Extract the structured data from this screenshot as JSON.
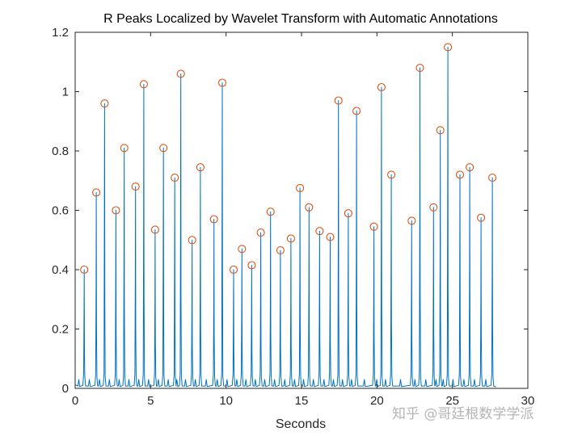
{
  "chart_data": {
    "type": "line",
    "title": "R Peaks Localized by Wavelet Transform with Automatic Annotations",
    "xlabel": "Seconds",
    "ylabel": "",
    "xlim": [
      0,
      30
    ],
    "ylim": [
      0,
      1.2
    ],
    "xticks": [
      0,
      5,
      10,
      15,
      20,
      25,
      30
    ],
    "yticks": [
      0,
      0.2,
      0.4,
      0.6,
      0.8,
      1,
      1.2
    ],
    "xtick_labels": [
      "0",
      "5",
      "10",
      "15",
      "20",
      "25",
      "30"
    ],
    "ytick_labels": [
      "0",
      "0.2",
      "0.4",
      "0.6",
      "0.8",
      "1",
      "1.2"
    ],
    "grid": false,
    "series": [
      {
        "type": "line",
        "color": "#0072BD",
        "description": "wavelet-transformed ECG signal"
      },
      {
        "type": "scatter",
        "marker": "circle-open",
        "color": "#D95319",
        "description": "automatic R peak annotations"
      }
    ],
    "peaks": {
      "x": [
        0.6,
        1.4,
        1.95,
        2.7,
        3.25,
        4.0,
        4.55,
        5.3,
        5.85,
        6.6,
        7.0,
        7.75,
        8.3,
        9.2,
        9.75,
        10.5,
        11.05,
        11.7,
        12.3,
        12.95,
        13.6,
        14.3,
        14.9,
        15.5,
        16.2,
        16.9,
        17.45,
        18.1,
        18.65,
        19.8,
        20.3,
        20.95,
        22.3,
        22.85,
        23.75,
        24.2,
        24.7,
        25.5,
        26.15,
        26.9,
        27.65
      ],
      "y": [
        0.4,
        0.66,
        0.96,
        0.6,
        0.81,
        0.68,
        1.025,
        0.535,
        0.81,
        0.71,
        1.06,
        0.5,
        0.745,
        0.57,
        1.03,
        0.4,
        0.47,
        0.415,
        0.525,
        0.595,
        0.465,
        0.505,
        0.675,
        0.61,
        0.53,
        0.51,
        0.97,
        0.59,
        0.935,
        0.545,
        1.015,
        0.72,
        0.565,
        1.08,
        0.61,
        0.87,
        1.15,
        0.72,
        0.745,
        0.575,
        0.71
      ]
    }
  },
  "watermark": {
    "text": "知乎 @哥廷根数学学派"
  }
}
